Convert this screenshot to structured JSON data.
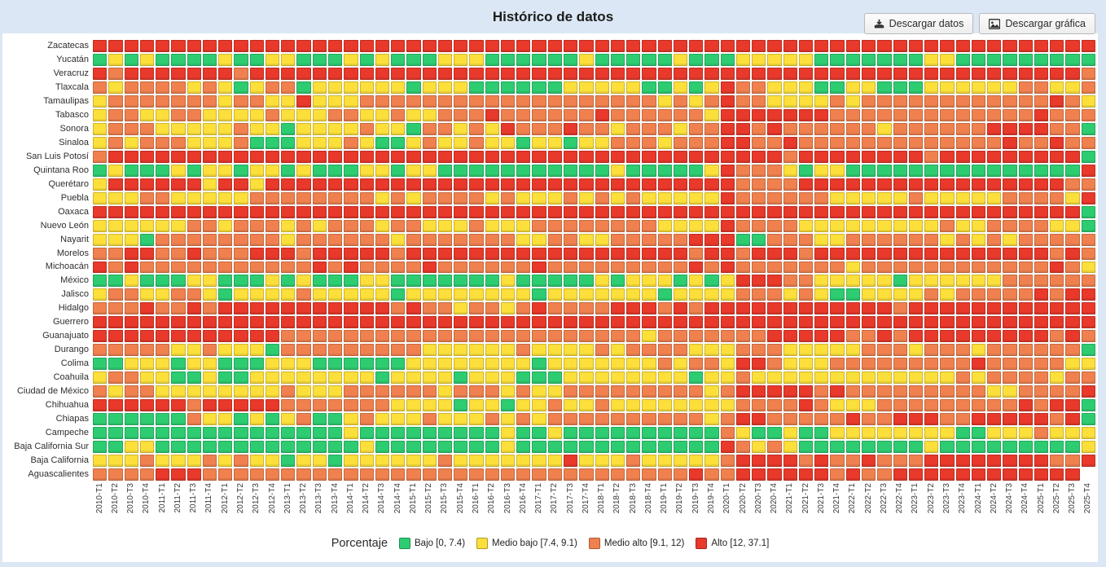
{
  "page": {
    "background": "#dbe7f4",
    "card_background": "#ffffff"
  },
  "header": {
    "title": "Histórico de datos",
    "buttons": [
      {
        "label": "Descargar datos",
        "icon": "download-icon"
      },
      {
        "label": "Descargar gráfica",
        "icon": "image-icon"
      }
    ]
  },
  "legend": {
    "title": "Porcentaje"
  },
  "chart_data": {
    "type": "heatmap",
    "title": "Histórico de datos",
    "legend_title": "Porcentaje",
    "legend_position": "bottom-center",
    "grid": "white 2px gaps between cells",
    "legend_items": [
      {
        "key": "G",
        "label": "Bajo [0, 7.4)",
        "color": "#2ecc71"
      },
      {
        "key": "Y",
        "label": "Medio bajo [7.4, 9.1)",
        "color": "#fcdf3a"
      },
      {
        "key": "O",
        "label": "Medio alto [9.1, 12)",
        "color": "#f0814f"
      },
      {
        "key": "R",
        "label": "Alto [12, 37.1]",
        "color": "#e8392b"
      }
    ],
    "x_labels": [
      "2010-T1",
      "2010-T2",
      "2010-T3",
      "2010-T4",
      "2011-T1",
      "2011-T2",
      "2011-T3",
      "2011-T4",
      "2012-T1",
      "2012-T2",
      "2012-T3",
      "2012-T4",
      "2013-T1",
      "2013-T2",
      "2013-T3",
      "2013-T4",
      "2014-T1",
      "2014-T2",
      "2014-T3",
      "2014-T4",
      "2015-T1",
      "2015-T2",
      "2015-T3",
      "2015-T4",
      "2016-T1",
      "2016-T2",
      "2016-T3",
      "2016-T4",
      "2017-T1",
      "2017-T2",
      "2017-T3",
      "2017-T4",
      "2018-T1",
      "2018-T2",
      "2018-T3",
      "2018-T4",
      "2019-T1",
      "2019-T2",
      "2019-T3",
      "2019-T4",
      "2020-T1",
      "2020-T2",
      "2020-T3",
      "2020-T4",
      "2021-T1",
      "2021-T2",
      "2021-T3",
      "2021-T4",
      "2022-T1",
      "2022-T2",
      "2022-T3",
      "2022-T4",
      "2023-T1",
      "2023-T2",
      "2023-T3",
      "2023-T4",
      "2024-T1",
      "2024-T2",
      "2024-T3",
      "2024-T4",
      "2025-T1",
      "2025-T2",
      "2025-T3",
      "2025-T4"
    ],
    "y_labels": [
      "Zacatecas",
      "Yucatán",
      "Veracruz",
      "Tlaxcala",
      "Tamaulipas",
      "Tabasco",
      "Sonora",
      "Sinaloa",
      "San Luis Potosí",
      "Quintana Roo",
      "Querétaro",
      "Puebla",
      "Oaxaca",
      "Nuevo León",
      "Nayarit",
      "Morelos",
      "Michoacán",
      "México",
      "Jalisco",
      "Hidalgo",
      "Guerrero",
      "Guanajuato",
      "Durango",
      "Colima",
      "Coahuila",
      "Ciudad de México",
      "Chihuahua",
      "Chiapas",
      "Campeche",
      "Baja California Sur",
      "Baja California",
      "Aguascalientes"
    ],
    "rows": [
      {
        "state": "Zacatecas",
        "values": "RRRRRRRRRRRRRRRRRRRRRRRRRRRRRRRRRRRRRRRRRRRRRRRRRRRRRRRRRRRRRRRR"
      },
      {
        "state": "Yucatán",
        "values": "GYGYGGGGYGGYYGGGYGYGGGYYYGGGGGGYGGGGGYGGGYYYYYGGGGGGGYYGGGGGGGGG"
      },
      {
        "state": "Veracruz",
        "values": "RORRRRRRRORRRRRRRRRRRRRRRRRRRRRRRRRRRRRRRRRRRRRRRRRRRRRRRRRRRRR"
      },
      {
        "state": "Tlaxcala",
        "values": "OOYOOOOYOYGYOOGYYYYYYGYYYGGGGGGYYYYYGGYGYROOYYYGGYYGGGYYYYYYOOYY"
      },
      {
        "state": "Tamaulipas",
        "values": "OYOOOOOOOYOOYYRYYYOOOOOOOOOOOOOOOOOOOYOYOROOYYYYOYOOOOOOOOOOOORO"
      },
      {
        "state": "Tabasco",
        "values": "YYOOYYOOYYYYOYYYOOYYOYYOOOROOOOOOROOOOOOYRRRRRRROOOOOOOOOOOOOROO"
      },
      {
        "state": "Sonora",
        "values": "OYOOOYYYYYOYYGYYYYOYYGOOYOYROOOROOYOOOYOORROROOOOOOYOOOOOORRRROO"
      },
      {
        "state": "Sinaloa",
        "values": "GYOYOOOYYYOGGGYYYOYGGYOYYOYYGYYGYYOOOYOOORROOROOOOOOOOOOOOOROORO"
      },
      {
        "state": "San Luis Potosí",
        "values": "OORRRRRRRRRRRRRRRRRRRRRRRRRRRRRRRRRRRRRRRRRRRORRRRRRRRORRRRRRRRR"
      },
      {
        "state": "Quintana Roo",
        "values": "GGYGGGYGYYGYYGYGGGYYGYYGGGGGGGGGGGYGGGGGYROOOYGYYGGGGGGGGGGGGGGG"
      },
      {
        "state": "Querétaro",
        "values": "RYRRRRRRYRRYRRRRRRRRRRRRRRRRRRRRRRRRRRRRRROOOORRRRRRRRRRRRRRRRRO"
      },
      {
        "state": "Puebla",
        "values": "OYYYOOYYYYYOOOOOOOOYOYOOOOYOYYYOYOYOYYYYYROOOOOOYYYYYOYYYYYOOOOY"
      },
      {
        "state": "Oaxaca",
        "values": "RRRRRRRRRRRRRRRRRRRRRRRRRRRRRRRRRRRRRRRRRRRRRRRRRRRRRRRRRRRRRRRR"
      },
      {
        "state": "Nuevo León",
        "values": "GYYYYYYOOYOOOYOYOOOYOOYYYOYYYOOOOOOOOYYYYROOOOYYYYYYYYYOYYOOOOYY"
      },
      {
        "state": "Nayarit",
        "values": "GYYYGOOOOOOOOYOOOOOOYOOOOOOOYYOOYYOOOOORRRGGOOOYYOOOOOOYOYOYOOOO"
      },
      {
        "state": "Morelos",
        "values": "OOORROOROOORRRORRRRRORRRRRRRRRRRRRRRRRRORRORRRORRRRRRRRRRRRRRROR"
      },
      {
        "state": "Michoacán",
        "values": "OROROOOOOOOOOOOROROOOOROOOOOOROOOOOOOOOROROOOOOOOYOOOOOOOOOOOORO"
      },
      {
        "state": "México",
        "values": "YGGYGGGYYGGGYGYGGGYYGGGGGGGYGGGGGYGYYYGYGYRRROOYYYYYGYYYYYYOOOOO"
      },
      {
        "state": "Jalisco",
        "values": "OYOOYYOOYGYYYYOYYYYYGYYYYYYYYGYYYYYYYGYYYYOOOYOYGGYYYYOYOOOOOROR"
      },
      {
        "state": "Hidalgo",
        "values": "ROOOROORORRRRRRRRRRROROOYOOYOROOOORRRORORRRRRRRRRRRRORRRRRRRRRRR"
      },
      {
        "state": "Guerrero",
        "values": "RRRRRRRRRRRRRRRRRRRRRRRRRRRRRRRRRRRRRRRRRRRRRRRRRRRRRRRRRRRRRRRR"
      },
      {
        "state": "Guanajuato",
        "values": "RRRRRRRRRRRRROOOOOOOOOOOOOOOOOOOOOOOYOOOOOOORRRRROORORRRRRRRRROR"
      },
      {
        "state": "Durango",
        "values": "OOOOOOYYOYYYGOOOOOOOOOYYYYYYOYYYYOYOOOOYYYOOOYYYYYOOOYOOOYOOOOOO"
      },
      {
        "state": "Colima",
        "values": "GGGYYYGYYGGGYYYGGGGGGYYYYYYYYGYYYYYYYOYOOYRROYYYOOOOOOOOOROOOOOY"
      },
      {
        "state": "Coahuila",
        "values": "YYOOYYGGYGGYYYYYYYYGYYYYGYYYGGGYYYYYYYYGYYOYYYYYYYYYYYYYOYOOOOYO"
      },
      {
        "state": "Ciudad de México",
        "values": "OOYOOYYYYYYYYOYYYOOOOOOYOOOYOYYOOOOOOOOOYORRRRROROOOOOOOOOYYOOOO"
      },
      {
        "state": "Chihuahua",
        "values": "RRRRRRRORRRRROOOOOOOYYYYGYYGYYOYYOYYYYYYYYOOOOROYYYOOOOOOOOORORR"
      },
      {
        "state": "Chiapas",
        "values": "GGGGGGGOYYGYGYOGGYOYYYOYYYOYOYOOOOOOOOOOYORROOOOOROORRROORRRRROR"
      },
      {
        "state": "Campeche",
        "values": "GGGGGGGGGGGGGGGGGYGGGGGGGGGYGGYGGGGGGGGGGOYGGYGGYYYYYYYYGGYYYOYY"
      },
      {
        "state": "Baja California Sur",
        "values": "YGGYYGGGGGGGGGGGGGYGGGGGGGGYGGGGGGGGGGGGGROYOYGGGGGGGGYGGGGGGGGG"
      },
      {
        "state": "Baja California",
        "values": "YYYYOYYYOYOYYGYYGYYYYYYOYYYYYYYRYYYOYYYYYORRRROROOROOORRRRRRRROO"
      },
      {
        "state": "Aguascalientes",
        "values": "ROOOORRROOOOOOOOOOOOOOOOOOOOOOOOOOOOOOOROORRRRRROROORRRRRRRRRRRR"
      }
    ]
  }
}
